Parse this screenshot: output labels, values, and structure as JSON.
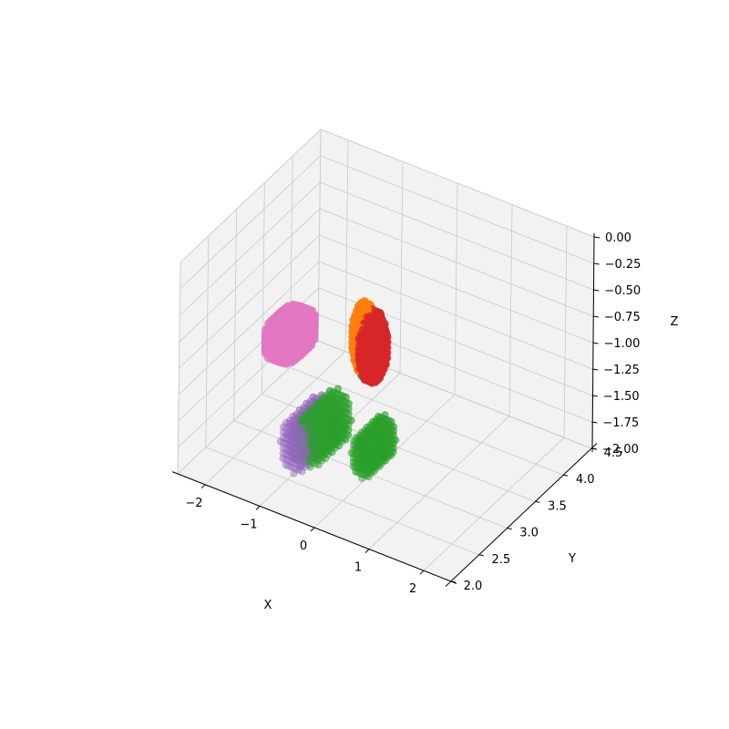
{
  "chart_data": {
    "type": "scatter",
    "projection": "3d",
    "title": "",
    "xlabel": "X",
    "ylabel": "Y",
    "zlabel": "Z",
    "xlim": [
      -2.5,
      2.5
    ],
    "ylim": [
      2.0,
      4.5
    ],
    "zlim": [
      -2.0,
      0.0
    ],
    "xticks": [
      "−2",
      "−1",
      "0",
      "1",
      "2"
    ],
    "xtick_values": [
      -2,
      -1,
      0,
      1,
      2
    ],
    "yticks": [
      "2.0",
      "2.5",
      "3.0",
      "3.5",
      "4.0",
      "4.5"
    ],
    "ytick_values": [
      2.0,
      2.5,
      3.0,
      3.5,
      4.0,
      4.5
    ],
    "zticks": [
      "0.00",
      "−0.25",
      "−0.50",
      "−0.75",
      "−1.00",
      "−1.25",
      "−1.50",
      "−1.75",
      "−2.00"
    ],
    "ztick_values": [
      0.0,
      -0.25,
      -0.5,
      -0.75,
      -1.0,
      -1.25,
      -1.5,
      -1.75,
      -2.0
    ],
    "grid": true,
    "series": [
      {
        "color": "#e377c2",
        "center": [
          -1.6,
          3.1,
          -1.05
        ],
        "radius": [
          0.35,
          0.35,
          0.22
        ],
        "shape": "ellipsoid"
      },
      {
        "color": "#d62728",
        "center": [
          -0.3,
          3.3,
          -1.0
        ],
        "radius": [
          0.25,
          0.15,
          0.35
        ],
        "shape": "ellipsoid"
      },
      {
        "color": "#ff7f0e",
        "center": [
          -0.45,
          3.3,
          -0.95
        ],
        "radius": [
          0.2,
          0.12,
          0.35
        ],
        "shape": "ellipsoid"
      },
      {
        "color": "#2ca02c",
        "center": [
          -0.45,
          2.6,
          -1.45
        ],
        "radius": [
          0.25,
          0.3,
          0.25
        ],
        "shape": "slab"
      },
      {
        "color": "#2ca02c",
        "center": [
          0.3,
          2.75,
          -1.55
        ],
        "radius": [
          0.2,
          0.25,
          0.2
        ],
        "shape": "slab"
      },
      {
        "color": "#9467bd",
        "center": [
          -0.65,
          2.5,
          -1.5
        ],
        "radius": [
          0.25,
          0.3,
          0.25
        ],
        "shape": "slab"
      },
      {
        "color": "#2ca02c",
        "center": [
          -0.45,
          3.35,
          -1.3
        ],
        "radius": [
          0.1,
          0.06,
          0.05
        ],
        "shape": "ellipsoid"
      }
    ]
  }
}
